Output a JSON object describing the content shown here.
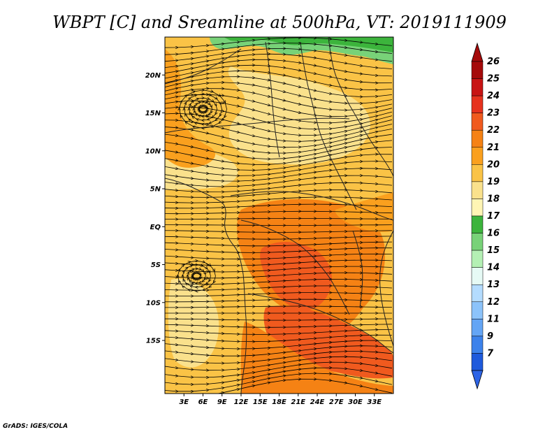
{
  "title": "WBPT [C] and Sreamline at 500hPa, VT: 2019111909",
  "credit": "GrADS: IGES/COLA",
  "map": {
    "lon_range": [
      0,
      36
    ],
    "lat_range": [
      -22,
      25
    ],
    "lat_ticks": [
      {
        "label": "20N",
        "value": 20
      },
      {
        "label": "15N",
        "value": 15
      },
      {
        "label": "10N",
        "value": 10
      },
      {
        "label": "5N",
        "value": 5
      },
      {
        "label": "EQ",
        "value": 0
      },
      {
        "label": "5S",
        "value": -5
      },
      {
        "label": "10S",
        "value": -10
      },
      {
        "label": "15S",
        "value": -15
      }
    ],
    "lon_ticks": [
      {
        "label": "3E",
        "value": 3
      },
      {
        "label": "6E",
        "value": 6
      },
      {
        "label": "9E",
        "value": 9
      },
      {
        "label": "12E",
        "value": 12
      },
      {
        "label": "15E",
        "value": 15
      },
      {
        "label": "18E",
        "value": 18
      },
      {
        "label": "21E",
        "value": 21
      },
      {
        "label": "24E",
        "value": 24
      },
      {
        "label": "27E",
        "value": 27
      },
      {
        "label": "30E",
        "value": 30
      },
      {
        "label": "33E",
        "value": 33
      }
    ]
  },
  "colorbar": {
    "levels": [
      {
        "label": "26",
        "color": "#a50a0a"
      },
      {
        "label": "25",
        "color": "#c81414"
      },
      {
        "label": "24",
        "color": "#e6321e"
      },
      {
        "label": "23",
        "color": "#f05a1e"
      },
      {
        "label": "22",
        "color": "#f58214"
      },
      {
        "label": "21",
        "color": "#faa01e"
      },
      {
        "label": "20",
        "color": "#fac346"
      },
      {
        "label": "19",
        "color": "#fae18c"
      },
      {
        "label": "18",
        "color": "#fff5b4"
      },
      {
        "label": "17",
        "color": "#3cb43c"
      },
      {
        "label": "16",
        "color": "#78d278"
      },
      {
        "label": "15",
        "color": "#b4f0b4"
      },
      {
        "label": "14",
        "color": "#e6faf5"
      },
      {
        "label": "13",
        "color": "#b4dcff"
      },
      {
        "label": "12",
        "color": "#8cc3fa"
      },
      {
        "label": "11",
        "color": "#64a5f5"
      },
      {
        "label": "9",
        "color": "#3c82eb"
      },
      {
        "label": "7",
        "color": "#1e5adc"
      }
    ],
    "top_arrow_color": "#a50a0a",
    "bottom_arrow_color": "#2d64e6"
  },
  "palette": {
    "pale": "#fae18c",
    "light": "#fac346",
    "mid": "#faa01e",
    "orange": "#f58214",
    "dark": "#f05a1e",
    "green": "#78d278",
    "greendark": "#3cb43c"
  }
}
